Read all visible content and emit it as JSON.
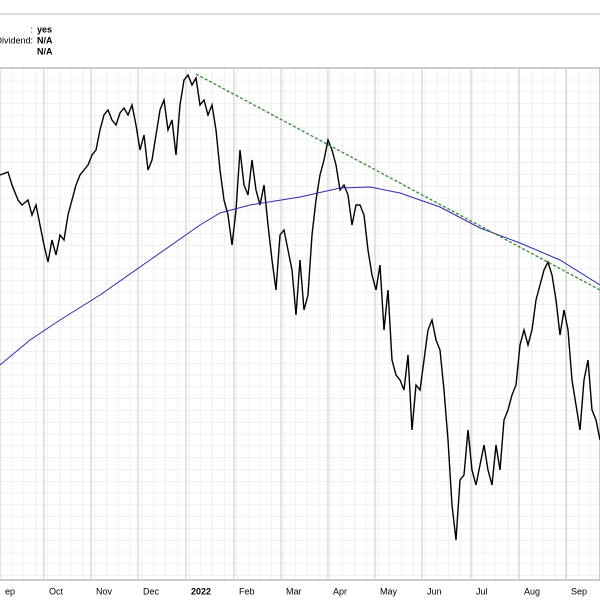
{
  "header": {
    "rows": [
      {
        "label": ":",
        "value": "yes"
      },
      {
        "label": "Dividend:",
        "value": "N/A"
      },
      {
        "label": "",
        "value": "N/A"
      }
    ]
  },
  "chart_data": {
    "type": "line",
    "xlim": [
      0,
      600
    ],
    "ylim": [
      20,
      532
    ],
    "xticks": [
      {
        "value": 0,
        "label": "ep"
      },
      {
        "value": 44,
        "label": "Oct"
      },
      {
        "value": 91,
        "label": "Nov"
      },
      {
        "value": 138,
        "label": "Dec"
      },
      {
        "value": 186,
        "label": "2022"
      },
      {
        "value": 234,
        "label": "Feb"
      },
      {
        "value": 281,
        "label": "Mar"
      },
      {
        "value": 328,
        "label": "Apr"
      },
      {
        "value": 375,
        "label": "May"
      },
      {
        "value": 422,
        "label": "Jun"
      },
      {
        "value": 471,
        "label": "Jul"
      },
      {
        "value": 519,
        "label": "Aug"
      },
      {
        "value": 566,
        "label": "Sep"
      }
    ],
    "grid": true,
    "series": [
      {
        "color": "#000000",
        "x": [
          0,
          8,
          12,
          18,
          22,
          28,
          32,
          36,
          40,
          44,
          48,
          52,
          56,
          60,
          64,
          68,
          72,
          76,
          80,
          84,
          88,
          92,
          96,
          100,
          104,
          108,
          112,
          116,
          120,
          124,
          128,
          132,
          136,
          140,
          144,
          148,
          152,
          156,
          160,
          164,
          168,
          172,
          176,
          180,
          184,
          188,
          192,
          196,
          200,
          204,
          208,
          212,
          216,
          220,
          224,
          228,
          232,
          236,
          240,
          244,
          248,
          252,
          256,
          260,
          264,
          268,
          272,
          276,
          280,
          284,
          288,
          292,
          296,
          300,
          304,
          308,
          312,
          316,
          320,
          324,
          328,
          332,
          336,
          340,
          344,
          348,
          352,
          356,
          360,
          364,
          368,
          372,
          376,
          380,
          384,
          388,
          392,
          396,
          400,
          404,
          408,
          412,
          416,
          420,
          424,
          428,
          432,
          436,
          440,
          444,
          448,
          452,
          456,
          460,
          464,
          468,
          472,
          476,
          480,
          484,
          488,
          492,
          496,
          500,
          504,
          508,
          512,
          516,
          520,
          524,
          528,
          532,
          536,
          540,
          544,
          548,
          552,
          556,
          560,
          564,
          568,
          572,
          576,
          580,
          584,
          588,
          592,
          596,
          600
        ],
        "values": [
          425,
          428,
          415,
          400,
          395,
          400,
          385,
          395,
          375,
          355,
          338,
          360,
          345,
          365,
          360,
          385,
          400,
          415,
          425,
          430,
          435,
          445,
          450,
          470,
          485,
          490,
          480,
          475,
          487,
          492,
          485,
          495,
          475,
          450,
          465,
          430,
          440,
          465,
          490,
          500,
          470,
          480,
          445,
          495,
          520,
          525,
          515,
          522,
          495,
          500,
          485,
          495,
          470,
          430,
          400,
          385,
          355,
          390,
          450,
          415,
          405,
          440,
          410,
          395,
          415,
          375,
          340,
          310,
          365,
          370,
          350,
          330,
          285,
          340,
          290,
          305,
          365,
          400,
          425,
          440,
          460,
          450,
          435,
          410,
          415,
          405,
          375,
          395,
          395,
          385,
          350,
          325,
          310,
          335,
          270,
          310,
          240,
          225,
          220,
          210,
          245,
          170,
          215,
          210,
          240,
          270,
          280,
          260,
          250,
          210,
          160,
          95,
          60,
          120,
          125,
          170,
          130,
          115,
          135,
          155,
          130,
          115,
          155,
          130,
          180,
          190,
          205,
          215,
          255,
          270,
          255,
          270,
          300,
          315,
          330,
          338,
          325,
          300,
          265,
          290,
          270,
          220,
          195,
          170,
          220,
          240,
          190,
          180,
          160
        ]
      },
      {
        "color": "#2b2bb0",
        "x": [
          0,
          30,
          60,
          100,
          150,
          200,
          220,
          250,
          300,
          340,
          370,
          400,
          440,
          480,
          520,
          560,
          600
        ],
        "values": [
          235,
          260,
          280,
          305,
          340,
          375,
          387,
          395,
          403,
          412,
          413,
          407,
          393,
          372,
          357,
          340,
          315
        ]
      },
      {
        "color": "#2e8b2e",
        "dashed": true,
        "x": [
          196,
          600
        ],
        "values": [
          526,
          310
        ]
      }
    ]
  }
}
